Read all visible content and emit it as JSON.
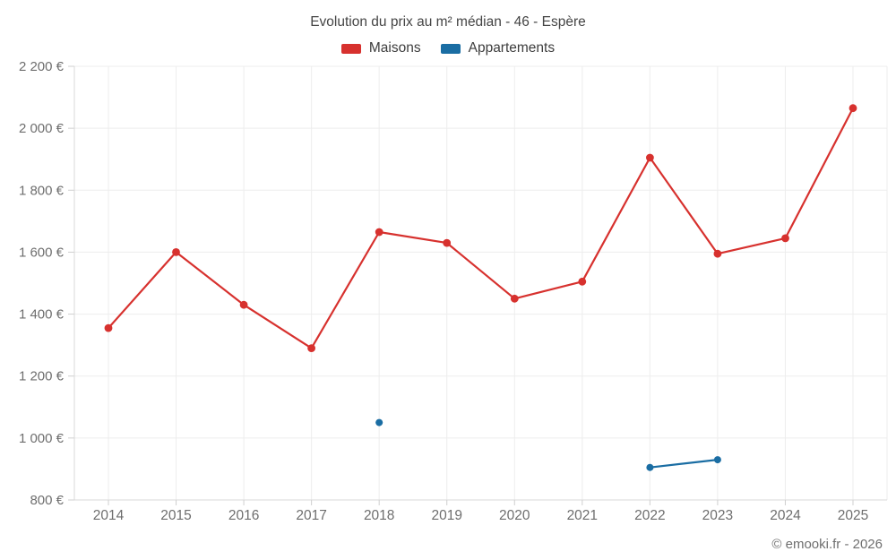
{
  "header": {
    "title": "Evolution du prix au m² médian - 46 - Espère"
  },
  "legend": {
    "items": [
      {
        "label": "Maisons",
        "color": "#d7312e"
      },
      {
        "label": "Appartements",
        "color": "#1a6da3"
      }
    ]
  },
  "footer": {
    "credit": "© emooki.fr - 2026"
  },
  "colors": {
    "background": "#ffffff",
    "grid": "#ededed",
    "axis": "#d9d9d9",
    "tick": "#cfcfcf",
    "axis_label": "#6e6e6e",
    "title_text": "#454545"
  },
  "chart_data": {
    "type": "line",
    "title": "Evolution du prix au m² médian - 46 - Espère",
    "xlabel": "",
    "ylabel": "",
    "x": [
      2014,
      2015,
      2016,
      2017,
      2018,
      2019,
      2020,
      2021,
      2022,
      2023,
      2024,
      2025
    ],
    "series": [
      {
        "name": "Maisons",
        "color": "#d7312e",
        "values": [
          1355,
          1600,
          1430,
          1290,
          1665,
          1630,
          1450,
          1505,
          1905,
          1595,
          1645,
          2065
        ]
      },
      {
        "name": "Appartements",
        "color": "#1a6da3",
        "values": [
          null,
          null,
          null,
          null,
          1050,
          null,
          null,
          null,
          905,
          930,
          null,
          null
        ]
      }
    ],
    "ylim": [
      800,
      2200
    ],
    "yticks": [
      {
        "v": 800,
        "label": "800 €"
      },
      {
        "v": 1000,
        "label": "1 000 €"
      },
      {
        "v": 1200,
        "label": "1 200 €"
      },
      {
        "v": 1400,
        "label": "1 400 €"
      },
      {
        "v": 1600,
        "label": "1 600 €"
      },
      {
        "v": 1800,
        "label": "1 800 €"
      },
      {
        "v": 2000,
        "label": "2 000 €"
      },
      {
        "v": 2200,
        "label": "2 200 €"
      },
      {
        "v": 2400,
        "label": ""
      }
    ],
    "grid": true,
    "legend_position": "top"
  }
}
